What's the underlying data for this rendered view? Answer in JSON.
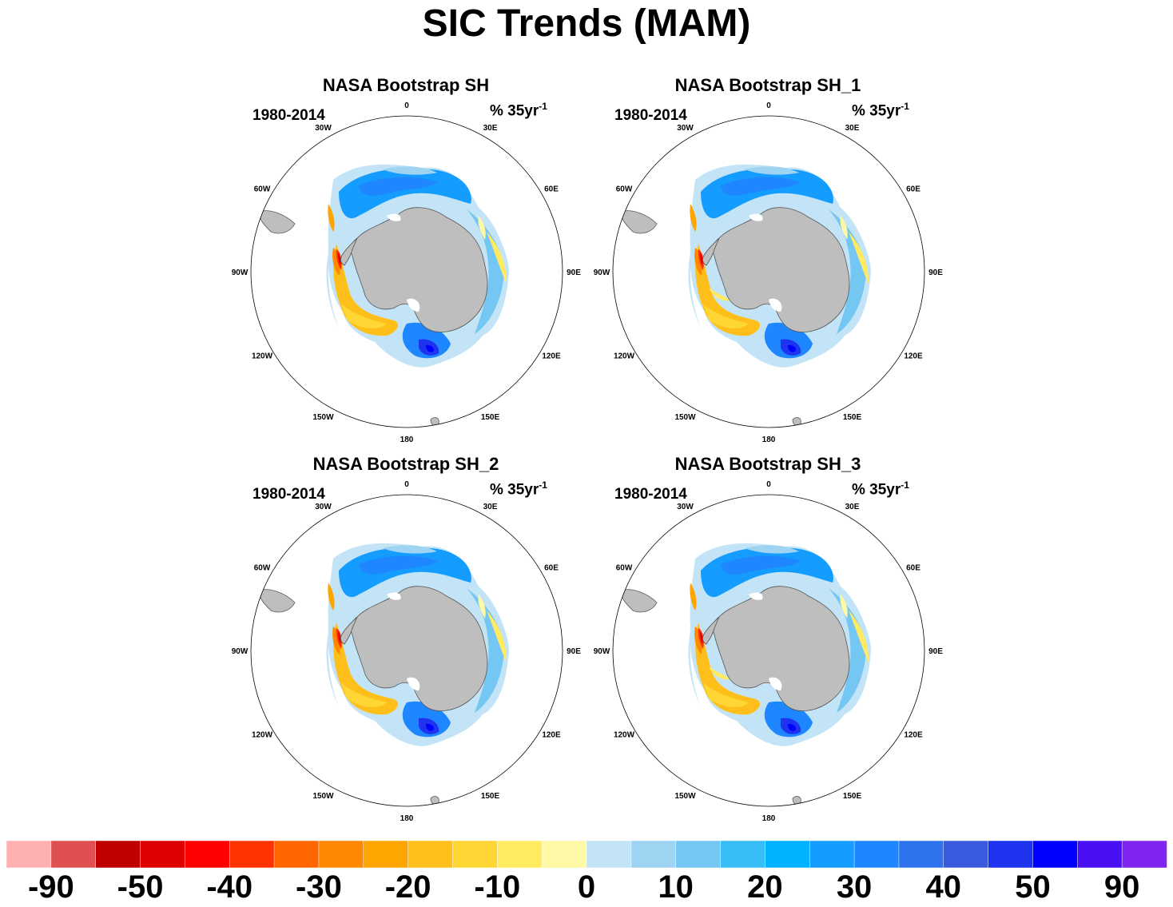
{
  "figure": {
    "title": "SIC Trends (MAM)"
  },
  "panels": [
    {
      "title": "NASA Bootstrap SH",
      "period": "1980-2014",
      "units": "% 35yr",
      "units_exp": "-1",
      "variant": 0
    },
    {
      "title": "NASA Bootstrap SH_1",
      "period": "1980-2014",
      "units": "% 35yr",
      "units_exp": "-1",
      "variant": 1
    },
    {
      "title": "NASA Bootstrap SH_2",
      "period": "1980-2014",
      "units": "% 35yr",
      "units_exp": "-1",
      "variant": 2
    },
    {
      "title": "NASA Bootstrap SH_3",
      "period": "1980-2014",
      "units": "% 35yr",
      "units_exp": "-1",
      "variant": 3
    }
  ],
  "longitude_labels": [
    {
      "text": "0",
      "lon": 0
    },
    {
      "text": "30E",
      "lon": 30
    },
    {
      "text": "60E",
      "lon": 60
    },
    {
      "text": "90E",
      "lon": 90
    },
    {
      "text": "120E",
      "lon": 120
    },
    {
      "text": "150E",
      "lon": 150
    },
    {
      "text": "180",
      "lon": 180
    },
    {
      "text": "150W",
      "lon": -150
    },
    {
      "text": "120W",
      "lon": -120
    },
    {
      "text": "90W",
      "lon": -90
    },
    {
      "text": "60W",
      "lon": -60
    },
    {
      "text": "30W",
      "lon": -30
    }
  ],
  "colorbar": {
    "colors": [
      "#ffb0b0",
      "#e05050",
      "#c00000",
      "#dd0000",
      "#ff0000",
      "#ff3300",
      "#ff6600",
      "#ff8800",
      "#ffa500",
      "#ffbf1a",
      "#ffd633",
      "#ffea60",
      "#fff9a6",
      "#c2e4f6",
      "#9fd3f2",
      "#74c6f3",
      "#36bdf5",
      "#00b2ff",
      "#149cff",
      "#1e87ff",
      "#2e72ee",
      "#3a5be0",
      "#1e33f0",
      "#0000ff",
      "#4a10f5",
      "#8024f2"
    ],
    "labels": [
      "-90",
      "-50",
      "-40",
      "-30",
      "-20",
      "-10",
      "0",
      "10",
      "20",
      "30",
      "40",
      "50",
      "90"
    ]
  },
  "palette": {
    "land": "#bebebe",
    "coast": "#555555",
    "map_outline": "#000000"
  }
}
